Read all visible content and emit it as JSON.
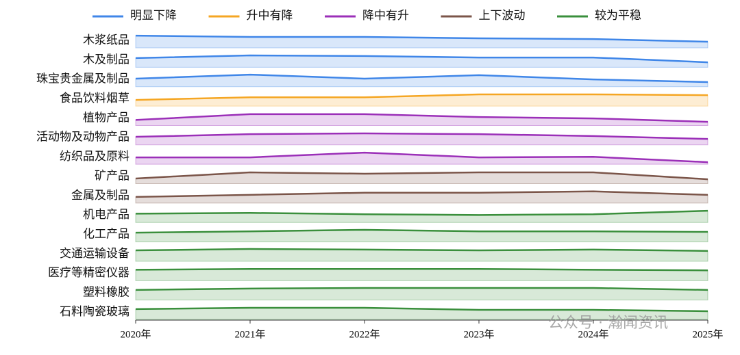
{
  "chart_data": {
    "type": "ridgeline",
    "legend": [
      {
        "name": "明显下降",
        "color": "#3f86e8"
      },
      {
        "name": "升中有降",
        "color": "#f5a623"
      },
      {
        "name": "降中有升",
        "color": "#9b2fb8"
      },
      {
        "name": "上下波动",
        "color": "#7b5549"
      },
      {
        "name": "较为平稳",
        "color": "#3a8f3c"
      }
    ],
    "categories": [
      "2020年",
      "2021年",
      "2022年",
      "2023年",
      "2024年",
      "2025年"
    ],
    "ylim": [
      0,
      1
    ],
    "series": [
      {
        "name": "木浆纸品",
        "color": "#3f86e8",
        "values": [
          0.64,
          0.57,
          0.57,
          0.5,
          0.46,
          0.32
        ]
      },
      {
        "name": "木及制品",
        "color": "#3f86e8",
        "values": [
          0.48,
          0.62,
          0.59,
          0.51,
          0.51,
          0.26
        ]
      },
      {
        "name": "珠宝贵金属及制品",
        "color": "#3f86e8",
        "values": [
          0.42,
          0.63,
          0.42,
          0.6,
          0.38,
          0.24
        ]
      },
      {
        "name": "食品饮料烟草",
        "color": "#f5a623",
        "values": [
          0.32,
          0.46,
          0.46,
          0.61,
          0.61,
          0.57
        ]
      },
      {
        "name": "植物产品",
        "color": "#9b2fb8",
        "values": [
          0.29,
          0.59,
          0.59,
          0.44,
          0.37,
          0.19
        ]
      },
      {
        "name": "活动物及动物产品",
        "color": "#9b2fb8",
        "values": [
          0.42,
          0.56,
          0.6,
          0.56,
          0.46,
          0.31
        ]
      },
      {
        "name": "纺织品及原料",
        "color": "#9b2fb8",
        "values": [
          0.36,
          0.36,
          0.61,
          0.36,
          0.39,
          0.11
        ]
      },
      {
        "name": "矿产品",
        "color": "#7b5549",
        "values": [
          0.27,
          0.59,
          0.52,
          0.59,
          0.59,
          0.23
        ]
      },
      {
        "name": "金属及制品",
        "color": "#7b5549",
        "values": [
          0.32,
          0.43,
          0.54,
          0.54,
          0.61,
          0.43
        ]
      },
      {
        "name": "机电产品",
        "color": "#3a8f3c",
        "values": [
          0.46,
          0.5,
          0.43,
          0.39,
          0.43,
          0.61
        ]
      },
      {
        "name": "化工产品",
        "color": "#3a8f3c",
        "values": [
          0.48,
          0.55,
          0.63,
          0.55,
          0.55,
          0.52
        ]
      },
      {
        "name": "交通运输设备",
        "color": "#3a8f3c",
        "values": [
          0.57,
          0.64,
          0.61,
          0.57,
          0.61,
          0.54
        ]
      },
      {
        "name": "医疗等精密仪器",
        "color": "#3a8f3c",
        "values": [
          0.57,
          0.61,
          0.61,
          0.61,
          0.57,
          0.54
        ]
      },
      {
        "name": "塑料橡胶",
        "color": "#3a8f3c",
        "values": [
          0.53,
          0.6,
          0.63,
          0.63,
          0.63,
          0.53
        ]
      },
      {
        "name": "石料陶瓷玻璃",
        "color": "#3a8f3c",
        "values": [
          0.54,
          0.61,
          0.61,
          0.5,
          0.5,
          0.43
        ]
      }
    ],
    "watermark": "公众号 · 瀚闻资讯"
  }
}
